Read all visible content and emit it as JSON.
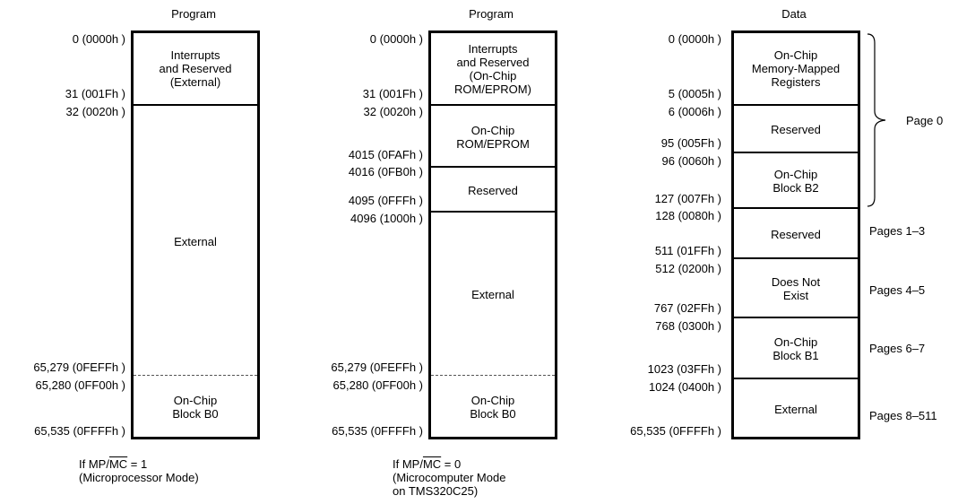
{
  "columns": [
    {
      "header": "Program",
      "segments": [
        {
          "label": "Interrupts\nand Reserved\n(External)"
        },
        {
          "label": "External"
        },
        {
          "label": "On-Chip\nBlock B0"
        }
      ],
      "addresses": [
        "0 (0000h )",
        "31 (001Fh )",
        "32 (0020h )",
        "65,279 (0FEFFh )",
        "65,280 (0FF00h )",
        "65,535 (0FFFFh )"
      ],
      "caption": {
        "prefix": "If MP/",
        "overline": "MC",
        "suffix": " = 1",
        "line2": "(Microprocessor Mode)",
        "line3": ""
      }
    },
    {
      "header": "Program",
      "segments": [
        {
          "label": "Interrupts\nand Reserved\n(On-Chip\nROM/EPROM)"
        },
        {
          "label": "On-Chip\nROM/EPROM"
        },
        {
          "label": "Reserved"
        },
        {
          "label": "External"
        },
        {
          "label": "On-Chip\nBlock B0"
        }
      ],
      "addresses": [
        "0 (0000h )",
        "31 (001Fh )",
        "32 (0020h )",
        "4015 (0FAFh )",
        "4016 (0FB0h )",
        "4095 (0FFFh )",
        "4096 (1000h )",
        "65,279 (0FEFFh )",
        "65,280 (0FF00h )",
        "65,535 (0FFFFh )"
      ],
      "caption": {
        "prefix": "If MP/",
        "overline": "MC",
        "suffix": " = 0",
        "line2": "(Microcomputer Mode",
        "line3": "on TMS320C25)"
      }
    },
    {
      "header": "Data",
      "segments": [
        {
          "label": "On-Chip\nMemory-Mapped\nRegisters"
        },
        {
          "label": "Reserved"
        },
        {
          "label": "On-Chip\nBlock B2"
        },
        {
          "label": "Reserved"
        },
        {
          "label": "Does Not\nExist"
        },
        {
          "label": "On-Chip\nBlock B1"
        },
        {
          "label": "External"
        }
      ],
      "addresses": [
        "0 (0000h )",
        "5 (0005h )",
        "6 (0006h )",
        "95 (005Fh )",
        "96 (0060h )",
        "127 (007Fh )",
        "128 (0080h )",
        "511 (01FFh )",
        "512 (0200h )",
        "767 (02FFh )",
        "768 (0300h )",
        "1023 (03FFh )",
        "1024 (0400h )",
        "65,535 (0FFFFh )"
      ],
      "pages": [
        "Page 0",
        "Pages 1–3",
        "Pages 4–5",
        "Pages 6–7",
        "Pages 8–511"
      ]
    }
  ]
}
